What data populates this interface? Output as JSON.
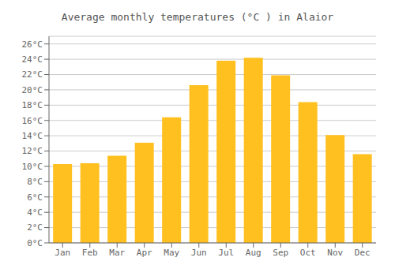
{
  "chart_data": {
    "type": "bar",
    "title": "Average monthly temperatures (°C ) in Alaior",
    "categories": [
      "Jan",
      "Feb",
      "Mar",
      "Apr",
      "May",
      "Jun",
      "Jul",
      "Aug",
      "Sep",
      "Oct",
      "Nov",
      "Dec"
    ],
    "values": [
      10.3,
      10.4,
      11.4,
      13.1,
      16.4,
      20.6,
      23.8,
      24.2,
      21.9,
      18.4,
      14.1,
      11.6
    ],
    "color": "#FFC020",
    "ylim": [
      0,
      27
    ],
    "yticks": [
      {
        "value": 0,
        "label": "0°C"
      },
      {
        "value": 2,
        "label": "2°C"
      },
      {
        "value": 4,
        "label": "4°C"
      },
      {
        "value": 6,
        "label": "6°C"
      },
      {
        "value": 8,
        "label": "8°C"
      },
      {
        "value": 10,
        "label": "10°C"
      },
      {
        "value": 12,
        "label": "12°C"
      },
      {
        "value": 14,
        "label": "14°C"
      },
      {
        "value": 16,
        "label": "16°C"
      },
      {
        "value": 18,
        "label": "18°C"
      },
      {
        "value": 20,
        "label": "20°C"
      },
      {
        "value": 22,
        "label": "22°C"
      },
      {
        "value": 24,
        "label": "24°C"
      },
      {
        "value": 26,
        "label": "26°C"
      }
    ],
    "grid": true
  }
}
